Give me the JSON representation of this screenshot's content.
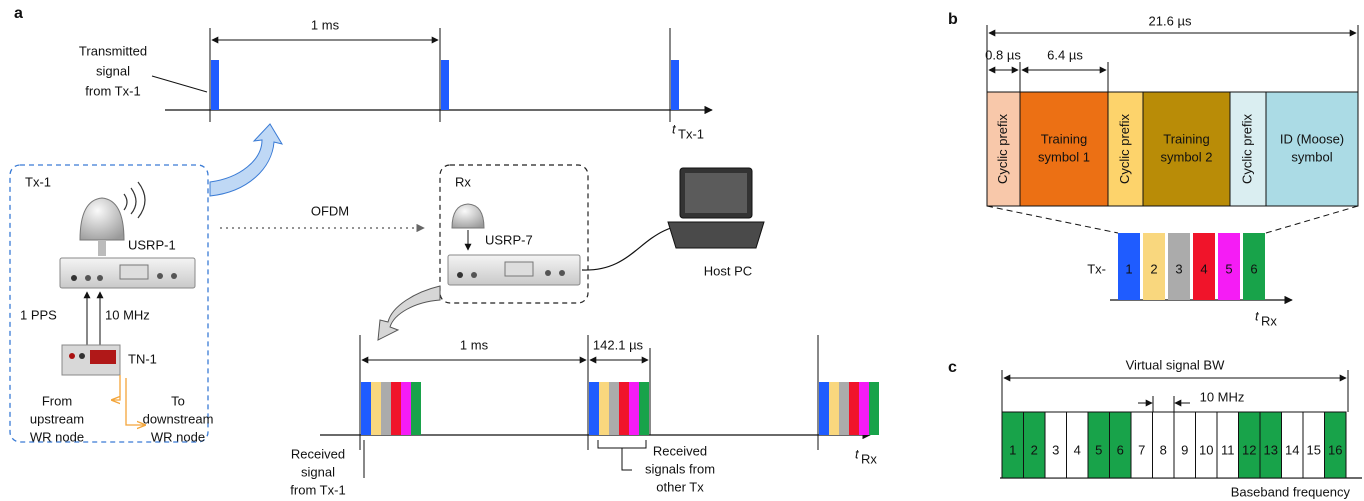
{
  "panel_a": {
    "label": "a",
    "tx_period": "1 ms",
    "tx_caption": [
      "Transmitted",
      "signal",
      "from Tx-1"
    ],
    "tx_axis": {
      "t": "t",
      "sub": "Tx-1"
    },
    "tx_node": "Tx-1",
    "usrp_tx": "USRP-1",
    "pps": "1 PPS",
    "clock": "10 MHz",
    "timing_node": "TN-1",
    "upstream": [
      "From",
      "upstream",
      "WR node"
    ],
    "downstream": [
      "To",
      "downstream",
      "WR node"
    ],
    "link": "OFDM",
    "rx_node": "Rx",
    "usrp_rx": "USRP-7",
    "host": "Host PC",
    "rx_period": "1 ms",
    "rx_burst": "142.1 µs",
    "rx_caption": [
      "Received",
      "signal",
      "from Tx-1"
    ],
    "others_caption": [
      "Received",
      "signals from",
      "other Tx"
    ],
    "rx_axis": {
      "t": "t",
      "sub": "Rx"
    }
  },
  "panel_b": {
    "label": "b",
    "frame": "21.6 µs",
    "prefix": "0.8 µs",
    "symbol": "6.4 µs",
    "blocks": [
      {
        "text": [
          "Cyclic prefix"
        ],
        "color": "#f8c8aa",
        "vertical": true
      },
      {
        "text": [
          "Training",
          "symbol 1"
        ],
        "color": "#ec7014",
        "vertical": false
      },
      {
        "text": [
          "Cyclic prefix"
        ],
        "color": "#fdd36b",
        "vertical": true
      },
      {
        "text": [
          "Training",
          "symbol 2"
        ],
        "color": "#b98c07",
        "vertical": false
      },
      {
        "text": [
          "Cyclic prefix"
        ],
        "color": "#daeef1",
        "vertical": true
      },
      {
        "text": [
          "ID (Moose)",
          "symbol"
        ],
        "color": "#abdbe5",
        "vertical": false
      }
    ],
    "tx_prefix": "Tx-",
    "tx": [
      {
        "label": 1,
        "color": "#1f5cff"
      },
      {
        "label": 2,
        "color": "#f9d77e"
      },
      {
        "label": 3,
        "color": "#ababab"
      },
      {
        "label": 4,
        "color": "#f0142a"
      },
      {
        "label": 5,
        "color": "#f51cf5"
      },
      {
        "label": 6,
        "color": "#18a34a"
      }
    ],
    "axis": {
      "t": "t",
      "sub": "Rx"
    }
  },
  "panel_c": {
    "label": "c",
    "bandwidth": "Virtual signal BW",
    "spacing": "10 MHz",
    "channels": [
      {
        "label": 1,
        "color": "#18a34a"
      },
      {
        "label": 2,
        "color": "#18a34a"
      },
      {
        "label": 3,
        "color": "#ffffff"
      },
      {
        "label": 4,
        "color": "#ffffff"
      },
      {
        "label": 5,
        "color": "#18a34a"
      },
      {
        "label": 6,
        "color": "#18a34a"
      },
      {
        "label": 7,
        "color": "#ffffff"
      },
      {
        "label": 8,
        "color": "#ffffff"
      },
      {
        "label": 9,
        "color": "#ffffff"
      },
      {
        "label": 10,
        "color": "#ffffff"
      },
      {
        "label": 11,
        "color": "#ffffff"
      },
      {
        "label": 12,
        "color": "#18a34a"
      },
      {
        "label": 13,
        "color": "#18a34a"
      },
      {
        "label": 14,
        "color": "#ffffff"
      },
      {
        "label": 15,
        "color": "#ffffff"
      },
      {
        "label": 16,
        "color": "#18a34a"
      }
    ],
    "axis": "Baseband frequency"
  }
}
